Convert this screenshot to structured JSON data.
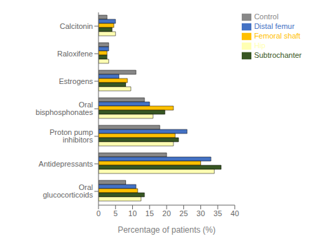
{
  "chart_data": {
    "type": "bar",
    "orientation": "horizontal",
    "categories": [
      "Calcitonin",
      "Raloxifene",
      "Estrogens",
      "Oral bisphosphonates",
      "Proton pump inhibitors",
      "Antidepressants",
      "Oral glucocorticoids"
    ],
    "series": [
      {
        "name": "Control",
        "color": "#888888",
        "values": [
          2.5,
          3.0,
          11.0,
          13.5,
          18.0,
          20.0,
          8.0
        ]
      },
      {
        "name": "Distal femur",
        "color": "#4472C4",
        "values": [
          5.0,
          3.0,
          6.0,
          15.0,
          26.0,
          33.0,
          11.0
        ]
      },
      {
        "name": "Femoral shaft",
        "color": "#FFC000",
        "values": [
          4.5,
          2.5,
          8.5,
          22.0,
          22.5,
          30.0,
          11.5
        ]
      },
      {
        "name": "Subtrochanter",
        "color": "#375623",
        "values": [
          4.0,
          2.5,
          8.0,
          19.5,
          23.5,
          36.0,
          13.5
        ]
      },
      {
        "name": "Hip",
        "color": "#FFFFB3",
        "values": [
          5.0,
          3.0,
          9.5,
          16.0,
          22.0,
          34.0,
          12.5
        ]
      }
    ],
    "xlabel": "Percentage of patients (%)",
    "xlim": [
      0,
      40
    ],
    "xticks": [
      0,
      5,
      10,
      15,
      20,
      25,
      30,
      35,
      40
    ],
    "legend": "upper right",
    "grid": false
  }
}
